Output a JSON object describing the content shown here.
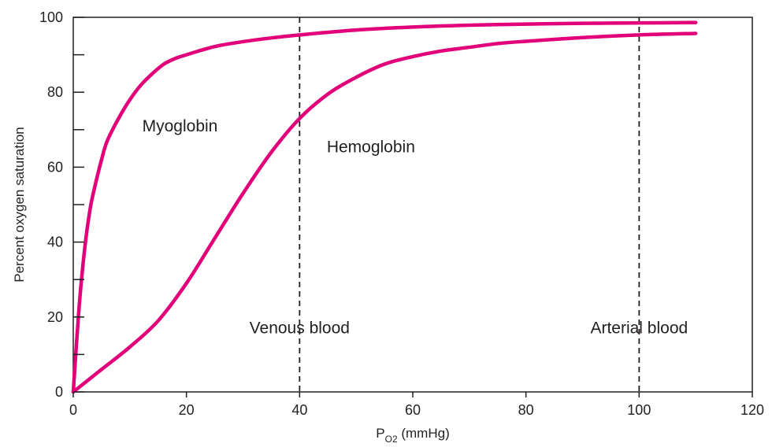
{
  "chart_data": {
    "type": "line",
    "xlabel": {
      "main": "P",
      "sub": "O2",
      "suffix": " (mmHg)"
    },
    "ylabel": "Percent oxygen saturation",
    "xlim": [
      0,
      120
    ],
    "ylim": [
      0,
      100
    ],
    "xticks": [
      0,
      20,
      40,
      60,
      80,
      100,
      120
    ],
    "yticks": [
      0,
      20,
      40,
      60,
      80,
      100
    ],
    "yminor": [
      10,
      30,
      50,
      70,
      90
    ],
    "grid": false,
    "series": [
      {
        "name": "Myoglobin",
        "color": "#e2007a",
        "x": [
          0,
          1,
          2,
          3,
          4,
          5,
          6,
          8,
          10,
          12,
          14,
          16,
          18,
          20,
          25,
          30,
          35,
          40,
          50,
          60,
          70,
          80,
          90,
          100,
          110
        ],
        "y": [
          0,
          22,
          38,
          49,
          56,
          62,
          67,
          73,
          78,
          82,
          85,
          87.5,
          89,
          90,
          92.2,
          93.5,
          94.5,
          95.3,
          96.6,
          97.4,
          97.9,
          98.2,
          98.4,
          98.5,
          98.6
        ]
      },
      {
        "name": "Hemoglobin",
        "color": "#e2007a",
        "x": [
          0,
          5,
          10,
          15,
          20,
          25,
          30,
          35,
          40,
          45,
          50,
          55,
          60,
          65,
          70,
          75,
          80,
          90,
          100,
          110
        ],
        "y": [
          0,
          6,
          12,
          19,
          29,
          41,
          53,
          64,
          73,
          79.5,
          84,
          87.5,
          89.5,
          91,
          92,
          93,
          93.6,
          94.6,
          95.3,
          95.7
        ]
      }
    ],
    "reference_lines": [
      {
        "x": 40,
        "label": "Venous blood"
      },
      {
        "x": 100,
        "label": "Arterial blood"
      }
    ],
    "annotations": [
      {
        "text": "Myoglobin",
        "x": 12.2,
        "y": 69.5
      },
      {
        "text": "Hemoglobin",
        "x": 44.8,
        "y": 64.0
      }
    ]
  }
}
